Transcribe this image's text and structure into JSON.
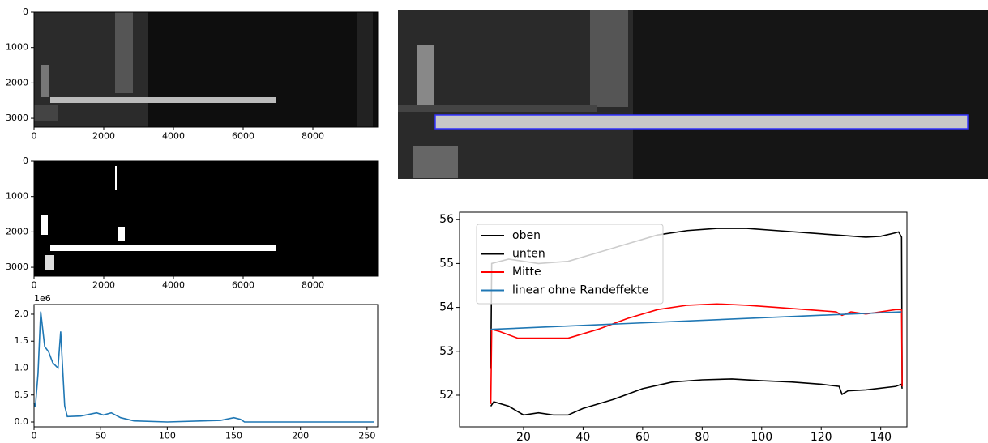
{
  "chart_data": [
    {
      "type": "image",
      "xlim": [
        0,
        9860
      ],
      "ylim": [
        3250,
        0
      ],
      "xticks": [
        0,
        2000,
        4000,
        6000,
        8000
      ],
      "yticks": [
        0,
        1000,
        2000,
        3000
      ]
    },
    {
      "type": "image",
      "xlim": [
        0,
        9860
      ],
      "ylim": [
        3250,
        0
      ],
      "xticks": [
        0,
        2000,
        4000,
        6000,
        8000
      ],
      "yticks": [
        0,
        1000,
        2000,
        3000
      ]
    },
    {
      "type": "line",
      "offset_text": "1e6",
      "xlim": [
        0,
        258
      ],
      "ylim": [
        -0.09,
        2.18
      ],
      "xticks": [
        0,
        50,
        100,
        150,
        200,
        250
      ],
      "yticks": [
        {
          "value": 0,
          "label": "0.0"
        },
        {
          "value": 0.5,
          "label": "0.5"
        },
        {
          "value": 1,
          "label": "1.0"
        },
        {
          "value": 1.5,
          "label": "1.5"
        },
        {
          "value": 2,
          "label": "2.0"
        }
      ],
      "series": [
        {
          "color": "#1f77b4",
          "x": [
            0,
            1,
            3,
            5,
            8,
            11,
            14,
            16,
            18,
            20,
            23,
            25,
            35,
            47,
            52,
            58,
            65,
            75,
            100,
            140,
            150,
            155,
            158,
            255
          ],
          "values": [
            0.35,
            0.28,
            0.9,
            2.05,
            1.4,
            1.3,
            1.1,
            1.05,
            1.0,
            1.68,
            0.3,
            0.1,
            0.11,
            0.17,
            0.13,
            0.17,
            0.08,
            0.02,
            0.0,
            0.03,
            0.08,
            0.05,
            0.0,
            0.0
          ]
        }
      ]
    },
    {
      "type": "line",
      "xlim": [
        -1.5,
        148.8
      ],
      "ylim": [
        51.28,
        56.17
      ],
      "xticks": [
        20,
        40,
        60,
        80,
        100,
        120,
        140
      ],
      "yticks": [
        52,
        53,
        54,
        55,
        56
      ],
      "legend": "upper left",
      "series": [
        {
          "name": "oben",
          "color": "#000000",
          "x": [
            9,
            9.3,
            15,
            25,
            35,
            45,
            55,
            65,
            75,
            85,
            95,
            105,
            115,
            125,
            135,
            140,
            145,
            146,
            147,
            147.2
          ],
          "values": [
            52.6,
            55.0,
            55.1,
            55.0,
            55.05,
            55.25,
            55.45,
            55.65,
            55.75,
            55.8,
            55.8,
            55.75,
            55.7,
            55.65,
            55.6,
            55.62,
            55.7,
            55.72,
            55.6,
            52.2
          ]
        },
        {
          "name": "unten",
          "color": "#000000",
          "x": [
            9,
            10,
            15,
            20,
            25,
            30,
            35,
            40,
            50,
            60,
            70,
            80,
            90,
            100,
            110,
            120,
            126,
            127,
            129,
            135,
            145,
            147,
            147.2
          ],
          "values": [
            51.75,
            51.85,
            51.75,
            51.55,
            51.6,
            51.55,
            51.55,
            51.7,
            51.9,
            52.15,
            52.3,
            52.35,
            52.37,
            52.33,
            52.3,
            52.25,
            52.2,
            52.02,
            52.1,
            52.12,
            52.2,
            52.25,
            52.15
          ]
        },
        {
          "name": "Mitte",
          "color": "#ff0000",
          "x": [
            9,
            9.3,
            12,
            18,
            25,
            35,
            45,
            55,
            65,
            75,
            85,
            95,
            105,
            115,
            125,
            127,
            130,
            135,
            145,
            147,
            147.2
          ],
          "values": [
            51.8,
            53.5,
            53.45,
            53.3,
            53.3,
            53.3,
            53.5,
            53.75,
            53.95,
            54.05,
            54.08,
            54.05,
            54.0,
            53.95,
            53.9,
            53.82,
            53.9,
            53.85,
            53.95,
            53.95,
            52.2
          ]
        },
        {
          "name": "linear ohne Randeffekte",
          "color": "#1f77b4",
          "x": [
            9,
            147
          ],
          "values": [
            53.5,
            53.9
          ]
        }
      ]
    }
  ]
}
